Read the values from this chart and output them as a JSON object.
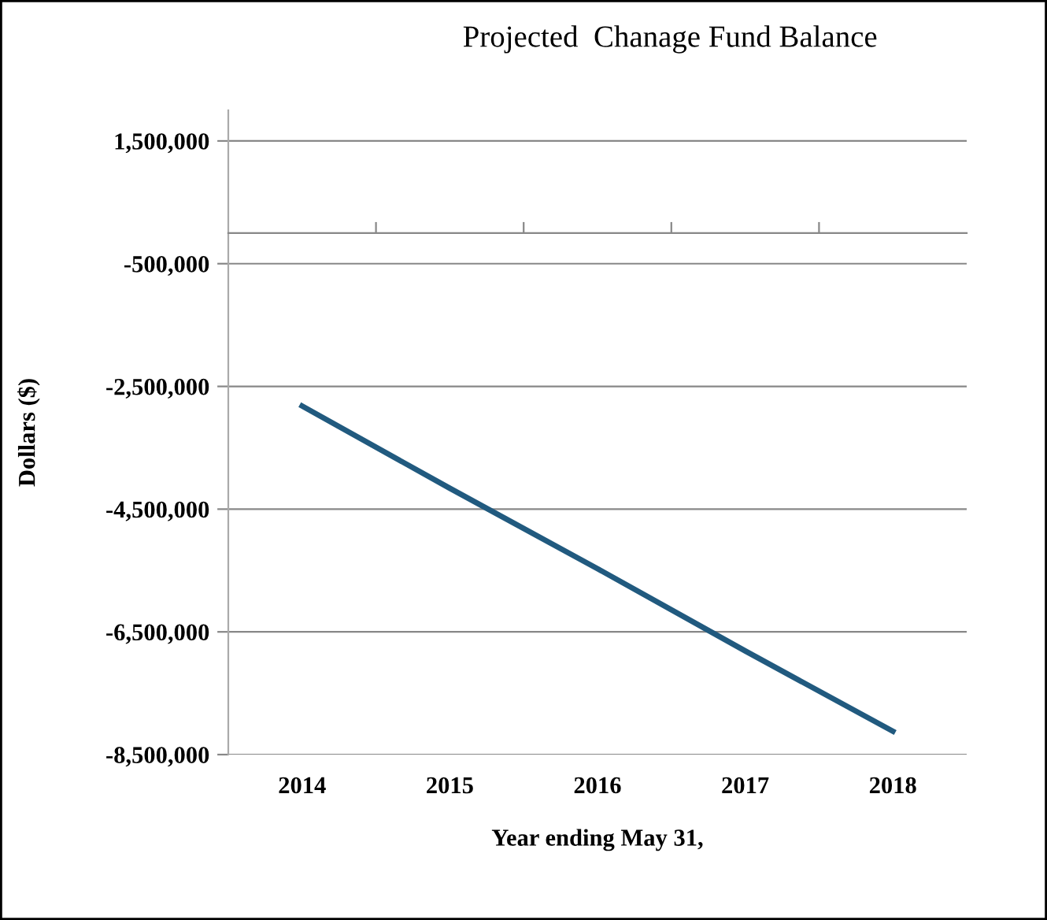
{
  "chart_data": {
    "type": "line",
    "title": "Projected  Chanage Fund Balance",
    "xlabel": "Year ending May 31,",
    "ylabel": "Dollars ($)",
    "categories": [
      "2014",
      "2015",
      "2016",
      "2017",
      "2018"
    ],
    "series": [
      {
        "color": "#215a7f",
        "values": [
          -2820000,
          -4160000,
          -5470000,
          -6810000,
          -8120000
        ]
      }
    ],
    "ylim": [
      -8500000,
      2000000
    ],
    "yticks": [
      {
        "value": -8500000,
        "label": "-8,500,000"
      },
      {
        "value": -6500000,
        "label": "-6,500,000"
      },
      {
        "value": -4500000,
        "label": "-4,500,000"
      },
      {
        "value": -2500000,
        "label": "-2,500,000"
      },
      {
        "value": -500000,
        "label": "-500,000"
      },
      {
        "value": 1500000,
        "label": "1,500,000"
      }
    ],
    "grid": "y",
    "legend": false,
    "marker": "none",
    "line_style": "solid"
  }
}
